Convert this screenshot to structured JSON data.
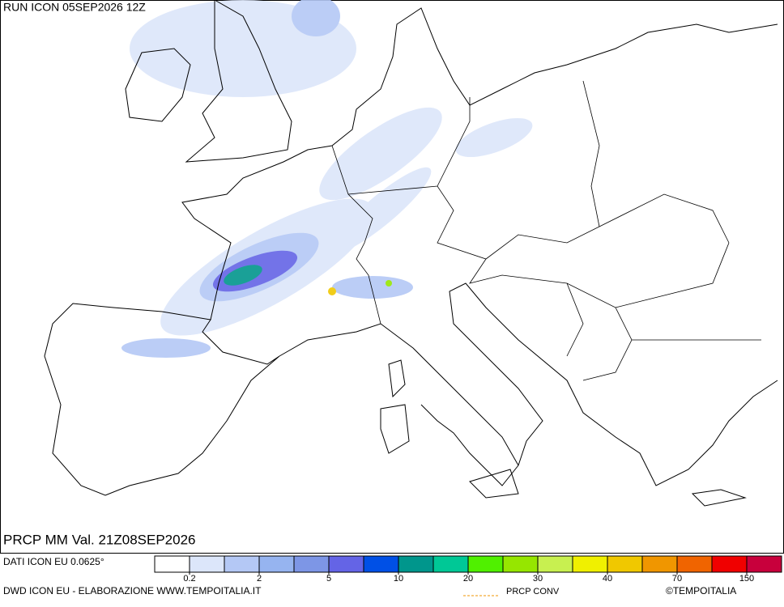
{
  "header": {
    "run": "RUN ICON 05SEP2026 12Z",
    "product": "PRCP MM Val. 21Z08SEP2026"
  },
  "footer": {
    "source": "DATI ICON EU 0.0625°",
    "credit": "DWD ICON EU - ELABORAZIONE WWW.TEMPOITALIA.IT",
    "conv_legend": "PRCP CONV",
    "copyright": "©TEMPOITALIA"
  },
  "colorbar": {
    "colors": [
      "#ffffff",
      "#dce6fa",
      "#b4c8f5",
      "#96b4f0",
      "#7d96e6",
      "#6464e6",
      "#0050e6",
      "#00968c",
      "#00c896",
      "#50f000",
      "#96e600",
      "#c8f050",
      "#f0f000",
      "#f0c800",
      "#f09600",
      "#f06400",
      "#f00000",
      "#c8003c"
    ],
    "ticks": [
      0.2,
      2,
      5,
      10,
      20,
      30,
      40,
      70,
      150
    ]
  }
}
